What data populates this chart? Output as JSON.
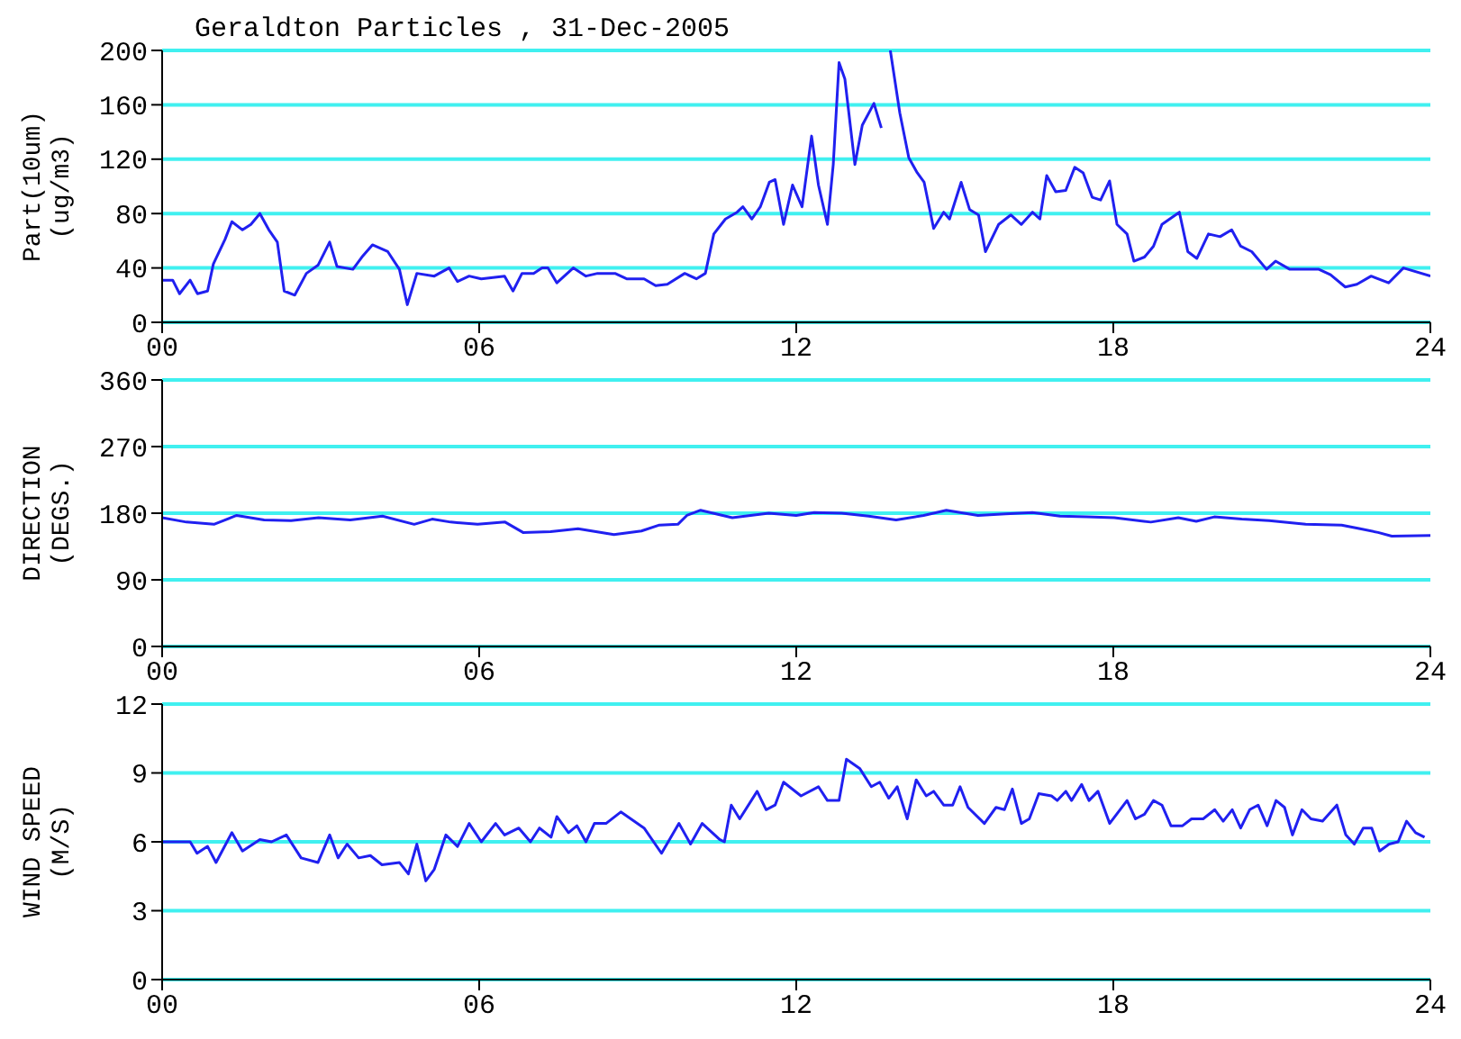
{
  "chart_data": [
    {
      "type": "line",
      "title": "Geraldton Particles , 31-Dec-2005",
      "ylabel": "Part(10um)\n(ug/m3)",
      "grid": "y",
      "xlim": [
        0,
        24
      ],
      "xticks": [
        {
          "value": 0,
          "label": "00"
        },
        {
          "value": 6,
          "label": "06"
        },
        {
          "value": 12,
          "label": "12"
        },
        {
          "value": 18,
          "label": "18"
        },
        {
          "value": 24,
          "label": "24"
        }
      ],
      "ylim": [
        0,
        200
      ],
      "yticks": [
        0,
        40,
        80,
        120,
        160,
        200
      ],
      "series": [
        {
          "color": "#2020f0",
          "x": [
            0,
            0.2,
            0.33,
            0.53,
            0.67,
            0.86,
            0.97,
            1.19,
            1.32,
            1.52,
            1.68,
            1.85,
            2.02,
            2.18,
            2.31,
            2.51,
            2.73,
            2.95,
            3.17,
            3.31,
            3.61,
            3.78,
            3.98,
            4.27,
            4.49,
            4.64,
            4.82,
            5.15,
            5.43,
            5.59,
            5.81,
            6.04,
            6.48,
            6.64,
            6.81,
            7.03,
            7.19,
            7.3,
            7.47,
            7.78,
            8.02,
            8.24,
            8.57,
            8.79,
            9.12,
            9.34,
            9.56,
            9.89,
            10.11,
            10.28,
            10.44,
            10.66,
            10.88,
            10.99,
            11.16,
            11.32,
            11.49,
            11.6,
            11.76,
            11.93,
            12.11,
            12.29,
            12.42,
            12.59,
            12.7,
            12.81,
            12.92,
            13.11,
            13.25,
            13.47,
            13.61,
            13.7,
            13.78,
            13.96,
            14.13,
            14.29,
            14.42,
            14.6,
            14.79,
            14.9,
            15.12,
            15.28,
            15.45,
            15.58,
            15.83,
            16.06,
            16.26,
            16.47,
            16.61,
            16.74,
            16.91,
            17.1,
            17.27,
            17.43,
            17.6,
            17.76,
            17.93,
            18.07,
            18.26,
            18.39,
            18.59,
            18.76,
            18.92,
            19.25,
            19.41,
            19.58,
            19.8,
            20.02,
            20.24,
            20.41,
            20.62,
            20.9,
            21.07,
            21.34,
            21.89,
            22.11,
            22.39,
            22.61,
            22.88,
            23.21,
            23.49,
            24
          ],
          "values": [
            31,
            31,
            21,
            31,
            21,
            23,
            43,
            61,
            74,
            68,
            72,
            80,
            68,
            59,
            23,
            20,
            36,
            42,
            59,
            41,
            39,
            48,
            57,
            52,
            39,
            13,
            36,
            34,
            40,
            30,
            34,
            32,
            34,
            23,
            36,
            36,
            40,
            40,
            29,
            40,
            34,
            36,
            36,
            32,
            32,
            27,
            28,
            36,
            32,
            36,
            65,
            76,
            81,
            85,
            76,
            85,
            103,
            105,
            72,
            101,
            85,
            137,
            101,
            72,
            116,
            191,
            179,
            116,
            145,
            161,
            143,
            null,
            200,
            154,
            121,
            110,
            103,
            69,
            81,
            76,
            103,
            83,
            79,
            52,
            72,
            79,
            72,
            81,
            76,
            108,
            96,
            97,
            114,
            110,
            92,
            90,
            104,
            72,
            65,
            45,
            48,
            56,
            72,
            81,
            52,
            47,
            65,
            63,
            68,
            56,
            52,
            39,
            45,
            39,
            39,
            35,
            26,
            28,
            34,
            29,
            40,
            34
          ]
        }
      ]
    },
    {
      "type": "line",
      "ylabel": "DIRECTION\n(DEGS.)",
      "grid": "y",
      "xlim": [
        0,
        24
      ],
      "xticks": [
        {
          "value": 0,
          "label": "00"
        },
        {
          "value": 6,
          "label": "06"
        },
        {
          "value": 12,
          "label": "12"
        },
        {
          "value": 18,
          "label": "18"
        },
        {
          "value": 24,
          "label": "24"
        }
      ],
      "ylim": [
        0,
        360
      ],
      "yticks": [
        0,
        90,
        180,
        270,
        360
      ],
      "series": [
        {
          "color": "#2020f0",
          "x": [
            0,
            0.46,
            0.98,
            1.41,
            1.93,
            2.44,
            2.96,
            3.56,
            4.17,
            4.77,
            5.11,
            5.46,
            5.97,
            6.49,
            6.83,
            7.35,
            7.87,
            8.55,
            9.07,
            9.41,
            9.76,
            9.93,
            10.19,
            10.79,
            11.48,
            12,
            12.34,
            12.86,
            13.37,
            13.89,
            14.41,
            14.84,
            15.44,
            15.96,
            16.47,
            16.99,
            17.5,
            18.02,
            18.71,
            19.23,
            19.57,
            19.91,
            20.43,
            20.95,
            21.64,
            22.32,
            22.67,
            23.01,
            23.27,
            24
          ],
          "values": [
            174,
            168,
            165,
            177,
            171,
            170,
            174,
            171,
            176,
            165,
            172,
            168,
            165,
            168,
            154,
            155,
            159,
            151,
            156,
            164,
            165,
            177,
            184,
            174,
            180,
            177,
            181,
            180,
            176,
            171,
            177,
            184,
            177,
            179,
            181,
            176,
            175,
            174,
            168,
            174,
            169,
            175,
            172,
            170,
            165,
            164,
            159,
            154,
            149,
            150
          ]
        }
      ]
    },
    {
      "type": "line",
      "ylabel": "WIND SPEED\n(M/S)",
      "grid": "y",
      "xlim": [
        0,
        24
      ],
      "xticks": [
        {
          "value": 0,
          "label": "00"
        },
        {
          "value": 6,
          "label": "06"
        },
        {
          "value": 12,
          "label": "12"
        },
        {
          "value": 18,
          "label": "18"
        },
        {
          "value": 24,
          "label": "24"
        }
      ],
      "ylim": [
        0,
        12
      ],
      "yticks": [
        0,
        3,
        6,
        9,
        12
      ],
      "series": [
        {
          "color": "#2020f0",
          "x": [
            0,
            0.53,
            0.66,
            0.86,
            1.02,
            1.32,
            1.52,
            1.85,
            2.07,
            2.35,
            2.63,
            2.95,
            3.17,
            3.33,
            3.5,
            3.72,
            3.94,
            4.16,
            4.49,
            4.66,
            4.82,
            4.99,
            5.15,
            5.37,
            5.59,
            5.81,
            6.04,
            6.31,
            6.48,
            6.75,
            6.97,
            7.14,
            7.36,
            7.47,
            7.69,
            7.85,
            8.02,
            8.18,
            8.4,
            8.68,
            9.12,
            9.45,
            9.78,
            10,
            10.22,
            10.55,
            10.64,
            10.77,
            10.93,
            11.26,
            11.43,
            11.6,
            11.76,
            12.09,
            12.42,
            12.59,
            12.81,
            12.95,
            13.2,
            13.42,
            13.58,
            13.75,
            13.91,
            14.1,
            14.27,
            14.46,
            14.6,
            14.79,
            14.96,
            15.1,
            15.25,
            15.56,
            15.78,
            15.94,
            16.09,
            16.26,
            16.41,
            16.59,
            16.83,
            16.94,
            17.1,
            17.21,
            17.4,
            17.54,
            17.71,
            17.93,
            18.26,
            18.42,
            18.59,
            18.76,
            18.92,
            19.09,
            19.31,
            19.48,
            19.7,
            19.92,
            20.08,
            20.25,
            20.41,
            20.58,
            20.74,
            20.91,
            21.08,
            21.24,
            21.39,
            21.57,
            21.74,
            21.96,
            22.23,
            22.4,
            22.56,
            22.73,
            22.89,
            23.04,
            23.22,
            23.39,
            23.55,
            23.72,
            23.89
          ],
          "values": [
            6,
            6,
            5.5,
            5.8,
            5.1,
            6.4,
            5.6,
            6.1,
            6,
            6.3,
            5.3,
            5.1,
            6.3,
            5.3,
            5.9,
            5.3,
            5.4,
            5,
            5.1,
            4.6,
            5.9,
            4.3,
            4.8,
            6.3,
            5.8,
            6.8,
            6,
            6.8,
            6.3,
            6.6,
            6,
            6.6,
            6.2,
            7.1,
            6.4,
            6.7,
            6,
            6.8,
            6.8,
            7.3,
            6.6,
            5.5,
            6.8,
            5.9,
            6.8,
            6.1,
            6,
            7.6,
            7,
            8.2,
            7.4,
            7.6,
            8.6,
            8,
            8.4,
            7.8,
            7.8,
            9.6,
            9.2,
            8.4,
            8.6,
            7.9,
            8.4,
            7,
            8.7,
            8,
            8.2,
            7.6,
            7.6,
            8.4,
            7.5,
            6.8,
            7.5,
            7.4,
            8.3,
            6.8,
            7,
            8.1,
            8,
            7.8,
            8.2,
            7.8,
            8.5,
            7.8,
            8.2,
            6.8,
            7.8,
            7,
            7.2,
            7.8,
            7.6,
            6.7,
            6.7,
            7,
            7,
            7.4,
            6.9,
            7.4,
            6.6,
            7.4,
            7.6,
            6.7,
            7.8,
            7.5,
            6.3,
            7.4,
            7,
            6.9,
            7.6,
            6.3,
            5.9,
            6.6,
            6.6,
            5.6,
            5.9,
            6,
            6.9,
            6.4,
            6.2
          ]
        }
      ]
    }
  ]
}
